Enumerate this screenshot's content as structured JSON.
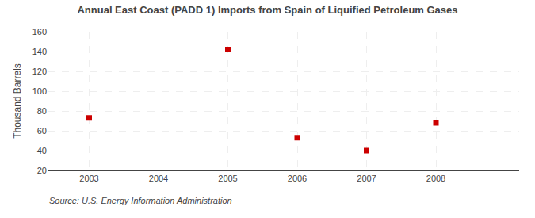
{
  "chart_data": {
    "type": "scatter",
    "title": "Annual East Coast (PADD 1) Imports from Spain of Liquified Petroleum Gases",
    "y_label": "Thousand Barrels",
    "annotations": [
      "Source: U.S. Energy Information Administration"
    ],
    "x": [
      2003,
      2005,
      2006,
      2007,
      2008
    ],
    "values": [
      73,
      142,
      53,
      40,
      68
    ],
    "color": "#cc0000",
    "marker": "square",
    "xlim": [
      2002.4,
      2009.2
    ],
    "xticks": [
      2003,
      2004,
      2005,
      2006,
      2007,
      2008
    ],
    "ylim": [
      20,
      160
    ],
    "yticks": [
      20,
      40,
      60,
      80,
      100,
      120,
      140,
      160
    ],
    "grid": true
  }
}
